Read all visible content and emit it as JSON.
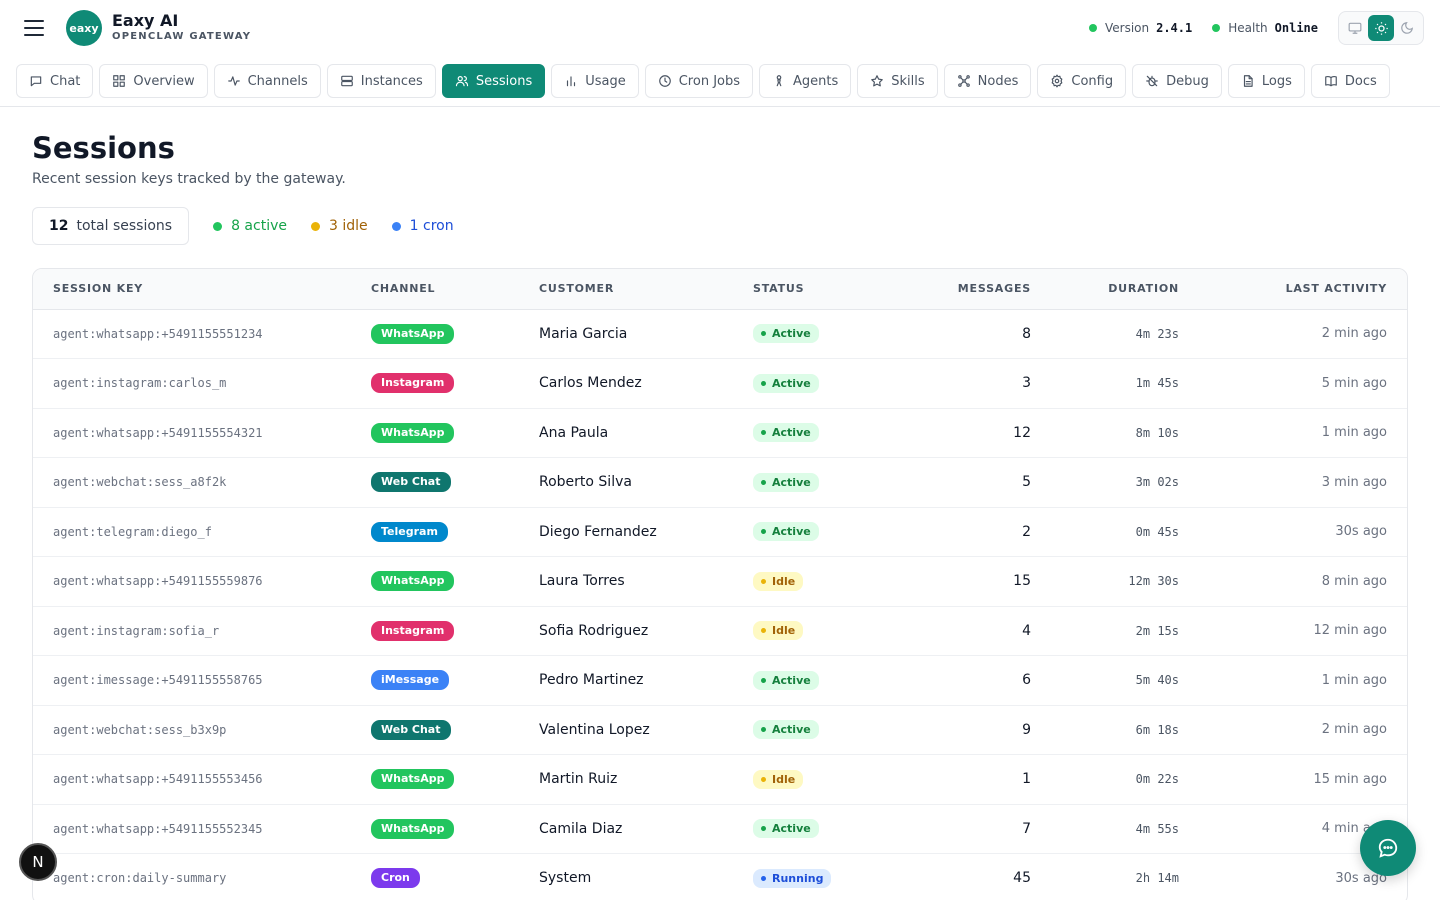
{
  "brand": {
    "logo_text": "eaxy",
    "title": "Eaxy AI",
    "subtitle": "OPENCLAW GATEWAY"
  },
  "header": {
    "version_label": "Version",
    "version_value": "2.4.1",
    "health_label": "Health",
    "health_value": "Online",
    "theme_modes": [
      "system",
      "light",
      "dark"
    ],
    "theme_active": "light"
  },
  "nav": {
    "tabs": [
      {
        "label": "Chat",
        "icon": "chat-icon"
      },
      {
        "label": "Overview",
        "icon": "grid-icon"
      },
      {
        "label": "Channels",
        "icon": "activity-icon"
      },
      {
        "label": "Instances",
        "icon": "server-icon"
      },
      {
        "label": "Sessions",
        "icon": "users-icon",
        "active": true
      },
      {
        "label": "Usage",
        "icon": "bar-chart-icon"
      },
      {
        "label": "Cron Jobs",
        "icon": "clock-icon"
      },
      {
        "label": "Agents",
        "icon": "agent-icon"
      },
      {
        "label": "Skills",
        "icon": "star-icon"
      },
      {
        "label": "Nodes",
        "icon": "nodes-icon"
      },
      {
        "label": "Config",
        "icon": "gear-icon"
      },
      {
        "label": "Debug",
        "icon": "bug-icon"
      },
      {
        "label": "Logs",
        "icon": "file-icon"
      },
      {
        "label": "Docs",
        "icon": "book-icon"
      }
    ]
  },
  "page": {
    "title": "Sessions",
    "subtitle": "Recent session keys tracked by the gateway."
  },
  "summary": {
    "total_count": "12",
    "total_label": "total sessions",
    "active": "8 active",
    "idle": "3 idle",
    "cron": "1 cron"
  },
  "colors": {
    "accent": "#0f8a76",
    "whatsapp": "#22c55e",
    "instagram": "#e1306c",
    "webchat": "#0f766e",
    "telegram": "#0088cc",
    "imessage": "#3b82f6",
    "cron": "#7c3aed",
    "active": "#16a34a",
    "idle": "#ca8a04",
    "running": "#2563eb"
  },
  "table": {
    "columns": {
      "key": "SESSION KEY",
      "channel": "CHANNEL",
      "customer": "CUSTOMER",
      "status": "STATUS",
      "messages": "MESSAGES",
      "duration": "DURATION",
      "last": "LAST ACTIVITY"
    },
    "rows": [
      {
        "key": "agent:whatsapp:+5491155551234",
        "channel": "WhatsApp",
        "ch": "whatsapp",
        "customer": "Maria Garcia",
        "status": "Active",
        "messages": "8",
        "duration": "4m 23s",
        "last": "2 min ago"
      },
      {
        "key": "agent:instagram:carlos_m",
        "channel": "Instagram",
        "ch": "instagram",
        "customer": "Carlos Mendez",
        "status": "Active",
        "messages": "3",
        "duration": "1m 45s",
        "last": "5 min ago"
      },
      {
        "key": "agent:whatsapp:+5491155554321",
        "channel": "WhatsApp",
        "ch": "whatsapp",
        "customer": "Ana Paula",
        "status": "Active",
        "messages": "12",
        "duration": "8m 10s",
        "last": "1 min ago"
      },
      {
        "key": "agent:webchat:sess_a8f2k",
        "channel": "Web Chat",
        "ch": "webchat",
        "customer": "Roberto Silva",
        "status": "Active",
        "messages": "5",
        "duration": "3m 02s",
        "last": "3 min ago"
      },
      {
        "key": "agent:telegram:diego_f",
        "channel": "Telegram",
        "ch": "telegram",
        "customer": "Diego Fernandez",
        "status": "Active",
        "messages": "2",
        "duration": "0m 45s",
        "last": "30s ago"
      },
      {
        "key": "agent:whatsapp:+5491155559876",
        "channel": "WhatsApp",
        "ch": "whatsapp",
        "customer": "Laura Torres",
        "status": "Idle",
        "messages": "15",
        "duration": "12m 30s",
        "last": "8 min ago"
      },
      {
        "key": "agent:instagram:sofia_r",
        "channel": "Instagram",
        "ch": "instagram",
        "customer": "Sofia Rodriguez",
        "status": "Idle",
        "messages": "4",
        "duration": "2m 15s",
        "last": "12 min ago"
      },
      {
        "key": "agent:imessage:+5491155558765",
        "channel": "iMessage",
        "ch": "imessage",
        "customer": "Pedro Martinez",
        "status": "Active",
        "messages": "6",
        "duration": "5m 40s",
        "last": "1 min ago"
      },
      {
        "key": "agent:webchat:sess_b3x9p",
        "channel": "Web Chat",
        "ch": "webchat",
        "customer": "Valentina Lopez",
        "status": "Active",
        "messages": "9",
        "duration": "6m 18s",
        "last": "2 min ago"
      },
      {
        "key": "agent:whatsapp:+5491155553456",
        "channel": "WhatsApp",
        "ch": "whatsapp",
        "customer": "Martin Ruiz",
        "status": "Idle",
        "messages": "1",
        "duration": "0m 22s",
        "last": "15 min ago"
      },
      {
        "key": "agent:whatsapp:+5491155552345",
        "channel": "WhatsApp",
        "ch": "whatsapp",
        "customer": "Camila Diaz",
        "status": "Active",
        "messages": "7",
        "duration": "4m 55s",
        "last": "4 min ago"
      },
      {
        "key": "agent:cron:daily-summary",
        "channel": "Cron",
        "ch": "cron",
        "customer": "System",
        "status": "Running",
        "messages": "45",
        "duration": "2h 14m",
        "last": "30s ago"
      }
    ]
  },
  "floating": {
    "left_label": "N",
    "right_icon": "chat-bubble-icon"
  }
}
